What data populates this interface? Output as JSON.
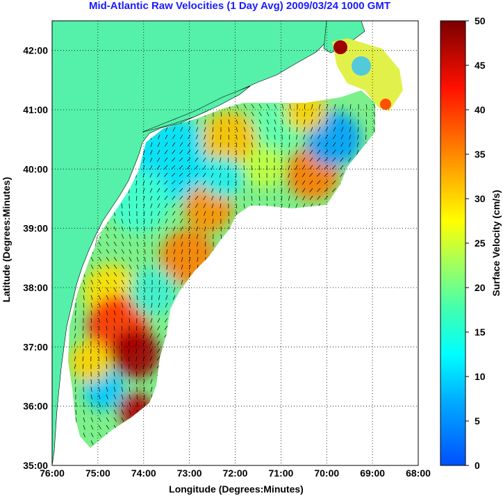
{
  "title": "Mid-Atlantic Raw Velocities (1 Day Avg) 2009/03/24 1000 GMT",
  "xlabel": "Longitude (Degrees:Minutes)",
  "ylabel": "Latitude (Degrees:Minutes)",
  "colorbar": {
    "label": "Surface Velocity (cm/s)",
    "ticks": [
      "0",
      "5",
      "10",
      "15",
      "20",
      "25",
      "30",
      "35",
      "40",
      "45",
      "50"
    ],
    "range": [
      0,
      50
    ],
    "colormap": "jet"
  },
  "x_ticks": [
    "76:00",
    "75:00",
    "74:00",
    "73:00",
    "72:00",
    "71:00",
    "70:00",
    "69:00",
    "68:00"
  ],
  "y_ticks": [
    "35:00",
    "36:00",
    "37:00",
    "38:00",
    "39:00",
    "40:00",
    "41:00",
    "42:00"
  ],
  "colors": {
    "land": "#55f0aa",
    "title": "#1a1aff",
    "grid": "#000000"
  },
  "chart_data": {
    "type": "heatmap",
    "xlim": [
      -76,
      -68
    ],
    "ylim": [
      35,
      42.5
    ],
    "grid": true,
    "grid_style": "dotted",
    "vectors": true
  }
}
